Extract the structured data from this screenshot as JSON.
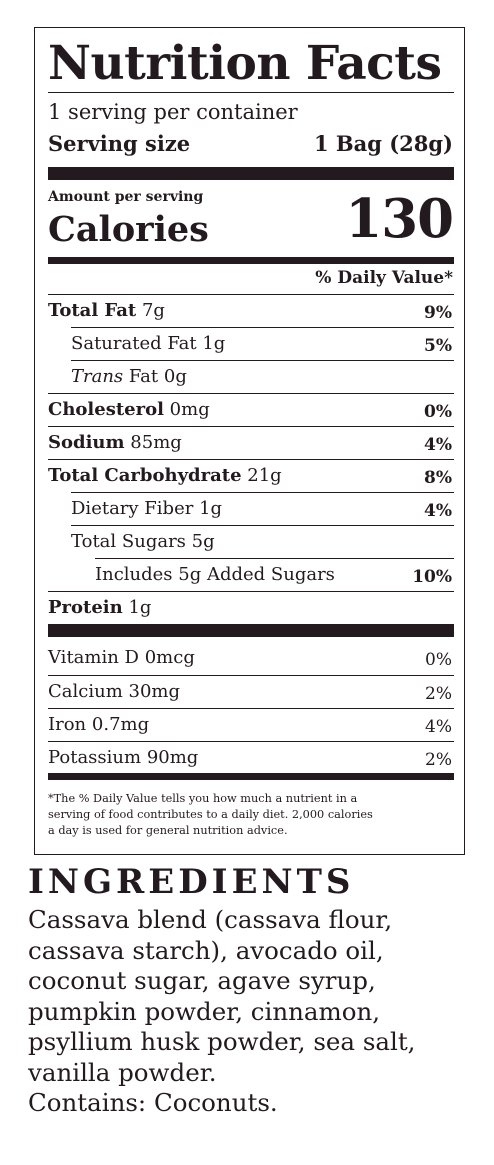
{
  "label": {
    "title": "Nutrition Facts",
    "servings": "1 serving per container",
    "serving_size_label": "Serving size",
    "serving_size_value": "1 Bag (28g)",
    "amount_per_serving": "Amount per serving",
    "calories_label": "Calories",
    "calories_value": "130",
    "daily_value_header": "% Daily Value*",
    "nutrients": [
      {
        "name": "Total Fat",
        "amount": "7g",
        "dv": "9%"
      },
      {
        "name": "Saturated Fat",
        "amount": "1g",
        "dv": "5%"
      },
      {
        "name": "Trans",
        "name2": "Fat",
        "amount": "0g",
        "dv": ""
      },
      {
        "name": "Cholesterol",
        "amount": "0mg",
        "dv": "0%"
      },
      {
        "name": "Sodium",
        "amount": "85mg",
        "dv": "4%"
      },
      {
        "name": "Total Carbohydrate",
        "amount": "21g",
        "dv": "8%"
      },
      {
        "name": "Dietary Fiber",
        "amount": "1g",
        "dv": "4%"
      },
      {
        "name": "Total Sugars",
        "amount": "5g",
        "dv": ""
      },
      {
        "name": "Includes 5g Added Sugars",
        "amount": "",
        "dv": "10%"
      },
      {
        "name": "Protein",
        "amount": "1g",
        "dv": ""
      }
    ],
    "vitamins": [
      {
        "name": "Vitamin D",
        "amount": "0mcg",
        "dv": "0%"
      },
      {
        "name": "Calcium",
        "amount": "30mg",
        "dv": "2%"
      },
      {
        "name": "Iron",
        "amount": "0.7mg",
        "dv": "4%"
      },
      {
        "name": "Potassium",
        "amount": "90mg",
        "dv": "2%"
      }
    ],
    "footnote": [
      "*The % Daily Value tells you how much a nutrient in a",
      "serving of food contributes to a daily diet. 2,000 calories",
      "a day is used for general nutrition advice."
    ]
  },
  "ingredients": {
    "heading": "INGREDIENTS",
    "lines": [
      "Cassava blend (cassava flour,",
      "cassava starch), avocado oil,",
      "coconut sugar, agave syrup,",
      "pumpkin powder, cinnamon,",
      "psyllium husk powder, sea salt,",
      "vanilla powder."
    ],
    "contains": "Contains: Coconuts."
  },
  "colors": {
    "ink": "#231a1f",
    "background": "#ffffff"
  }
}
